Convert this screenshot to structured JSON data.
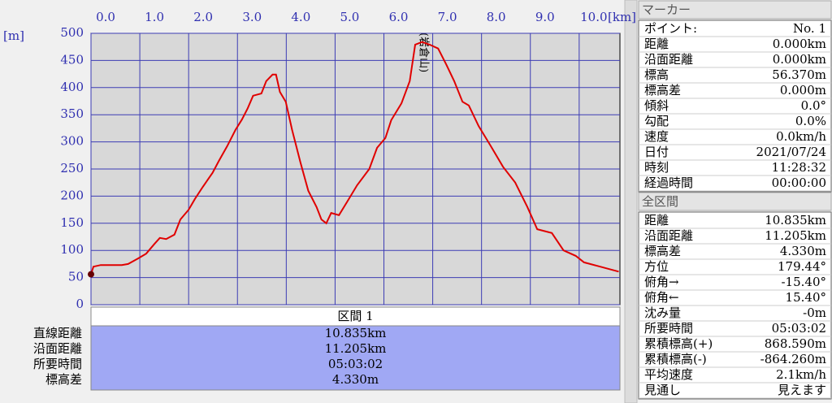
{
  "chart_data": {
    "type": "line",
    "x_unit": "[km]",
    "y_unit": "[m]",
    "annotations": [
      {
        "text": "(岩倉山)"
      }
    ],
    "color": "#e00000",
    "grid": true,
    "grid_color": "#3c3cb4",
    "xlim": [
      0,
      10.835
    ],
    "ylim": [
      0,
      500
    ],
    "xticks": [
      {
        "value": 0,
        "label": "0.0"
      },
      {
        "value": 1,
        "label": "1.0"
      },
      {
        "value": 2,
        "label": "2.0"
      },
      {
        "value": 3,
        "label": "3.0"
      },
      {
        "value": 4,
        "label": "4.0"
      },
      {
        "value": 5,
        "label": "5.0"
      },
      {
        "value": 6,
        "label": "6.0"
      },
      {
        "value": 7,
        "label": "7.0"
      },
      {
        "value": 8,
        "label": "8.0"
      },
      {
        "value": 9,
        "label": "9.0"
      },
      {
        "value": 10,
        "label": "10.0"
      }
    ],
    "yticks": [
      0,
      50,
      100,
      150,
      200,
      250,
      300,
      350,
      400,
      450,
      500
    ],
    "x": [
      0,
      0.05,
      0.2,
      0.63,
      0.76,
      0.96,
      1.13,
      1.3,
      1.41,
      1.54,
      1.71,
      1.83,
      2.0,
      2.13,
      2.29,
      2.49,
      2.62,
      2.79,
      2.96,
      3.09,
      3.21,
      3.32,
      3.49,
      3.59,
      3.72,
      3.79,
      3.87,
      3.99,
      4.12,
      4.29,
      4.45,
      4.62,
      4.72,
      4.82,
      4.92,
      5.08,
      5.25,
      5.45,
      5.7,
      5.86,
      6.03,
      6.15,
      6.36,
      6.53,
      6.64,
      6.78,
      6.94,
      7.11,
      7.28,
      7.44,
      7.61,
      7.74,
      7.94,
      8.19,
      8.44,
      8.69,
      8.94,
      9.14,
      9.44,
      9.68,
      9.93,
      10.1,
      10.43,
      10.81
    ],
    "values": [
      56,
      70,
      73,
      73,
      75,
      85,
      94,
      112,
      123,
      121,
      129,
      157,
      175,
      195,
      217,
      243,
      265,
      292,
      322,
      341,
      362,
      385,
      389,
      412,
      424,
      424,
      392,
      374,
      322,
      262,
      210,
      180,
      157,
      150,
      169,
      165,
      190,
      220,
      250,
      289,
      307,
      340,
      371,
      412,
      479,
      484,
      479,
      472,
      442,
      412,
      374,
      367,
      329,
      292,
      254,
      225,
      180,
      139,
      132,
      100,
      90,
      78,
      70,
      61
    ]
  },
  "section_table": {
    "header": "区間 1",
    "rows": [
      [
        "直線距離",
        "10.835km"
      ],
      [
        "沿面距離",
        "11.205km"
      ],
      [
        "所要時間",
        "05:03:02"
      ],
      [
        "標高差",
        "4.330m"
      ]
    ]
  },
  "marker_panel": {
    "title": "マーカー",
    "rows": [
      [
        "ポイント:",
        "No. 1"
      ],
      [
        "距離",
        "0.000km"
      ],
      [
        "沿面距離",
        "0.000km"
      ],
      [
        "標高",
        "56.370m"
      ],
      [
        "標高差",
        "0.000m"
      ],
      [
        "傾斜",
        "0.0°"
      ],
      [
        "勾配",
        "0.0%"
      ],
      [
        "速度",
        "0.0km/h"
      ],
      [
        "日付",
        "2021/07/24"
      ],
      [
        "時刻",
        "11:28:32"
      ],
      [
        "経過時間",
        "00:00:00"
      ]
    ]
  },
  "total_panel": {
    "title": "全区間",
    "rows": [
      [
        "距離",
        "10.835km"
      ],
      [
        "沿面距離",
        "11.205km"
      ],
      [
        "標高差",
        "4.330m"
      ],
      [
        "方位",
        "179.44°"
      ],
      [
        "俯角→",
        "-15.40°"
      ],
      [
        "俯角←",
        "15.40°"
      ],
      [
        "沈み量",
        "-0m"
      ],
      [
        "所要時間",
        "05:03:02"
      ],
      [
        "累積標高(+)",
        "868.590m"
      ],
      [
        "累積標高(-)",
        "-864.260m"
      ],
      [
        "平均速度",
        "2.1km/h"
      ],
      [
        "見通し",
        "見えます"
      ]
    ]
  }
}
